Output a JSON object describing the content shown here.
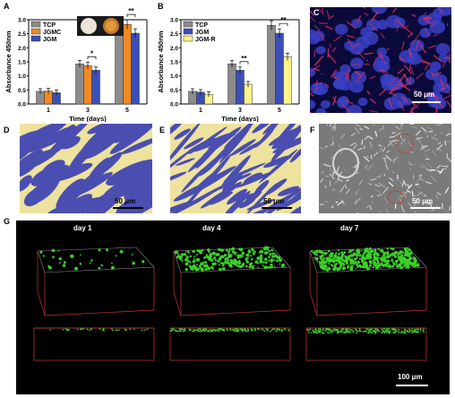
{
  "figure": {
    "panel_labels": [
      "A",
      "B",
      "C",
      "D",
      "E",
      "F",
      "G"
    ],
    "scale_50": "50 μm",
    "scale_100": "100 μm",
    "g_days": [
      "day 1",
      "day 4",
      "day 7"
    ],
    "colors": {
      "tcp": "#8c8c8c",
      "jgmc": "#f08a24",
      "jgm": "#3b4fb8",
      "jgmr": "#fff38a",
      "yellow_bg": "#ede29e",
      "cells": "#4a4eb0",
      "red_box": "#c0392b",
      "green_cells": "#3ccf2a"
    }
  },
  "chart_data": [
    {
      "type": "bar",
      "panel": "A",
      "ylabel": "Absorbance 450nm",
      "xlabel": "Time (days)",
      "categories": [
        "1",
        "3",
        "5"
      ],
      "ylim": [
        0,
        3.0
      ],
      "yticks": [
        "0.0",
        "0.5",
        "1.0",
        "1.5",
        "2.0",
        "2.5",
        "3.0"
      ],
      "series": [
        {
          "name": "TCP",
          "values": [
            0.45,
            1.43,
            2.77
          ]
        },
        {
          "name": "JGMC",
          "values": [
            0.46,
            1.37,
            2.83
          ]
        },
        {
          "name": "JGM",
          "values": [
            0.4,
            1.2,
            2.52
          ]
        }
      ],
      "significance": [
        "*",
        "**"
      ]
    },
    {
      "type": "bar",
      "panel": "B",
      "ylabel": "Absorbance 450nm",
      "xlabel": "Time (days)",
      "categories": [
        "1",
        "3",
        "5"
      ],
      "ylim": [
        0,
        3.0
      ],
      "yticks": [
        "0.0",
        "0.5",
        "1.0",
        "1.5",
        "2.0",
        "2.5",
        "3.0"
      ],
      "series": [
        {
          "name": "TCP",
          "values": [
            0.45,
            1.43,
            2.8
          ]
        },
        {
          "name": "JGM",
          "values": [
            0.42,
            1.2,
            2.52
          ]
        },
        {
          "name": "JGM-R",
          "values": [
            0.34,
            0.7,
            1.68
          ]
        }
      ],
      "significance": [
        "**",
        "**"
      ]
    }
  ]
}
